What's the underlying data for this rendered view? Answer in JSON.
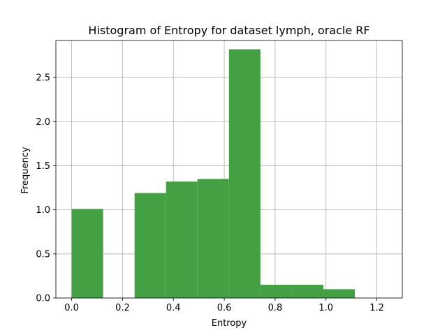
{
  "chart_data": {
    "type": "bar",
    "title": "Histogram of Entropy for dataset lymph, oracle RF",
    "xlabel": "Entropy",
    "ylabel": "Frequency",
    "xlim": [
      -0.062,
      1.3
    ],
    "ylim": [
      0,
      2.92
    ],
    "xticks": [
      0.0,
      0.2,
      0.4,
      0.6,
      0.8,
      1.0,
      1.2
    ],
    "xtick_labels": [
      "0.0",
      "0.2",
      "0.4",
      "0.6",
      "0.8",
      "1.0",
      "1.2"
    ],
    "yticks": [
      0.0,
      0.5,
      1.0,
      1.5,
      2.0,
      2.5
    ],
    "ytick_labels": [
      "0.0",
      "0.5",
      "1.0",
      "1.5",
      "2.0",
      "2.5"
    ],
    "grid": true,
    "bar_color": "#43a143",
    "bins": [
      {
        "x0": 0.0,
        "x1": 0.1237,
        "value": 1.01
      },
      {
        "x0": 0.1237,
        "x1": 0.2474,
        "value": 0.0
      },
      {
        "x0": 0.2474,
        "x1": 0.3711,
        "value": 1.19
      },
      {
        "x0": 0.3711,
        "x1": 0.4948,
        "value": 1.32
      },
      {
        "x0": 0.4948,
        "x1": 0.6185,
        "value": 1.35
      },
      {
        "x0": 0.6185,
        "x1": 0.7422,
        "value": 2.82
      },
      {
        "x0": 0.7422,
        "x1": 0.8659,
        "value": 0.15
      },
      {
        "x0": 0.8659,
        "x1": 0.9896,
        "value": 0.15
      },
      {
        "x0": 0.9896,
        "x1": 1.1133,
        "value": 0.1
      },
      {
        "x0": 1.1133,
        "x1": 1.237,
        "value": 0.0
      }
    ]
  }
}
